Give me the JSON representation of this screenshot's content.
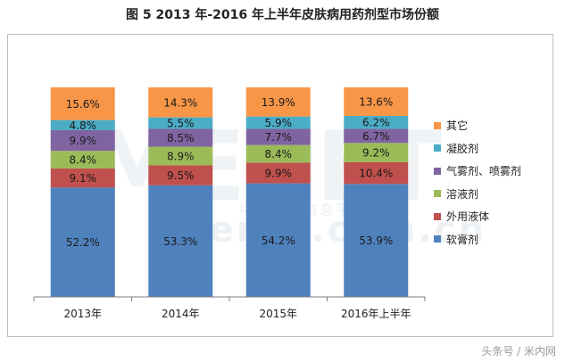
{
  "title": "图 5 2013 年-2016 年上半年皮肤病用药剂型市场份额",
  "source_text": "头条号 / 米内网",
  "watermark": {
    "main": "MENET",
    "sub": "menet.com.cn",
    "cn": "中国医药信息平台"
  },
  "chart_data": {
    "type": "bar",
    "stacked": true,
    "percent_stacked": true,
    "categories": [
      "2013年",
      "2014年",
      "2015年",
      "2016年上半年"
    ],
    "series": [
      {
        "name": "软膏剂",
        "color": "#4f81bd",
        "values": [
          52.2,
          53.3,
          54.2,
          53.9
        ]
      },
      {
        "name": "外用液体",
        "color": "#c0504d",
        "values": [
          9.1,
          9.5,
          9.9,
          10.4
        ]
      },
      {
        "name": "溶液剂",
        "color": "#9bbb59",
        "values": [
          8.4,
          8.9,
          8.4,
          9.2
        ]
      },
      {
        "name": "气雾剂、喷雾剂",
        "color": "#8064a2",
        "values": [
          9.9,
          8.5,
          7.7,
          6.7
        ]
      },
      {
        "name": "凝胶剂",
        "color": "#4bacc6",
        "values": [
          4.8,
          5.5,
          5.9,
          6.2
        ]
      },
      {
        "name": "其它",
        "color": "#f79646",
        "values": [
          15.6,
          14.3,
          13.9,
          13.6
        ]
      }
    ],
    "legend_position": "right",
    "grid": false
  }
}
